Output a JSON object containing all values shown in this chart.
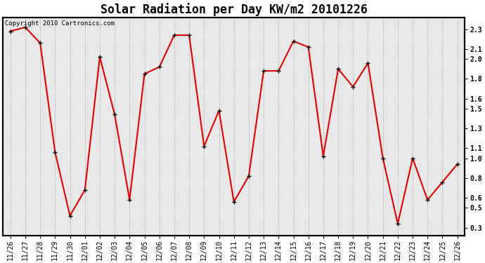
{
  "title": "Solar Radiation per Day KW/m2 20101226",
  "copyright": "Copyright 2010 Cartronics.com",
  "x_labels": [
    "11/26",
    "11/27",
    "11/28",
    "11/29",
    "11/30",
    "12/01",
    "12/02",
    "12/03",
    "12/04",
    "12/05",
    "12/06",
    "12/07",
    "12/08",
    "12/09",
    "12/10",
    "12/11",
    "12/12",
    "12/13",
    "12/14",
    "12/15",
    "12/16",
    "12/17",
    "12/18",
    "12/19",
    "12/20",
    "12/21",
    "12/22",
    "12/23",
    "12/24",
    "12/25",
    "12/26"
  ],
  "y_values": [
    2.28,
    2.32,
    2.16,
    1.06,
    0.42,
    0.68,
    2.02,
    1.44,
    0.58,
    1.85,
    1.92,
    2.24,
    2.24,
    1.12,
    1.48,
    0.56,
    0.82,
    1.88,
    1.88,
    2.18,
    2.12,
    1.02,
    1.9,
    1.72,
    1.96,
    1.0,
    0.34,
    1.0,
    0.58,
    0.76,
    0.94
  ],
  "line_color": "#dd0000",
  "marker_color": "#000000",
  "background_color": "#ffffff",
  "plot_bg_color": "#e8e8e8",
  "grid_color": "#bbbbbb",
  "yticks": [
    0.3,
    0.5,
    0.6,
    0.8,
    1.0,
    1.1,
    1.3,
    1.5,
    1.6,
    1.8,
    2.0,
    2.1,
    2.3
  ],
  "ylim": [
    0.22,
    2.42
  ],
  "title_fontsize": 12,
  "tick_fontsize": 7,
  "copyright_fontsize": 6.5
}
